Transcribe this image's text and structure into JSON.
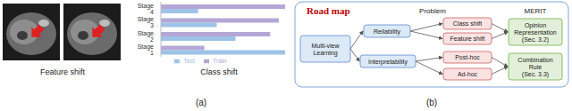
{
  "chart_data": {
    "type": "bar",
    "title": "Class shift",
    "orientation": "horizontal",
    "categories": [
      "Stage 4",
      "Stage 3",
      "Stage 2",
      "Stage 1"
    ],
    "series": [
      {
        "name": "Train",
        "color": "#b4a7d6",
        "values": [
          100,
          95,
          88,
          35
        ]
      },
      {
        "name": "Test",
        "color": "#9dc3e6",
        "values": [
          30,
          45,
          60,
          100
        ]
      }
    ],
    "xlim": [
      0,
      100
    ],
    "grid": false,
    "legend": "bottom",
    "tick_labels": "y"
  },
  "panel_a": {
    "caption": "Feature shift",
    "label": "(a)"
  },
  "panel_b": {
    "title": "Road map",
    "label": "(b)",
    "columns": [
      "Problem",
      "MERIT"
    ],
    "root": [
      "Multi-view",
      "Learning"
    ],
    "problems": [
      {
        "label": "Reliability",
        "children": [
          "Class shift",
          "Feature shift"
        ],
        "solution": [
          "Opinion",
          "Representation",
          "(Sec. 3.2)"
        ]
      },
      {
        "label": "Interpretability",
        "children": [
          "Post-hoc",
          "Ad-hoc"
        ],
        "solution": [
          "Combination",
          "Rule",
          "(Sec. 3.3)"
        ]
      }
    ]
  }
}
